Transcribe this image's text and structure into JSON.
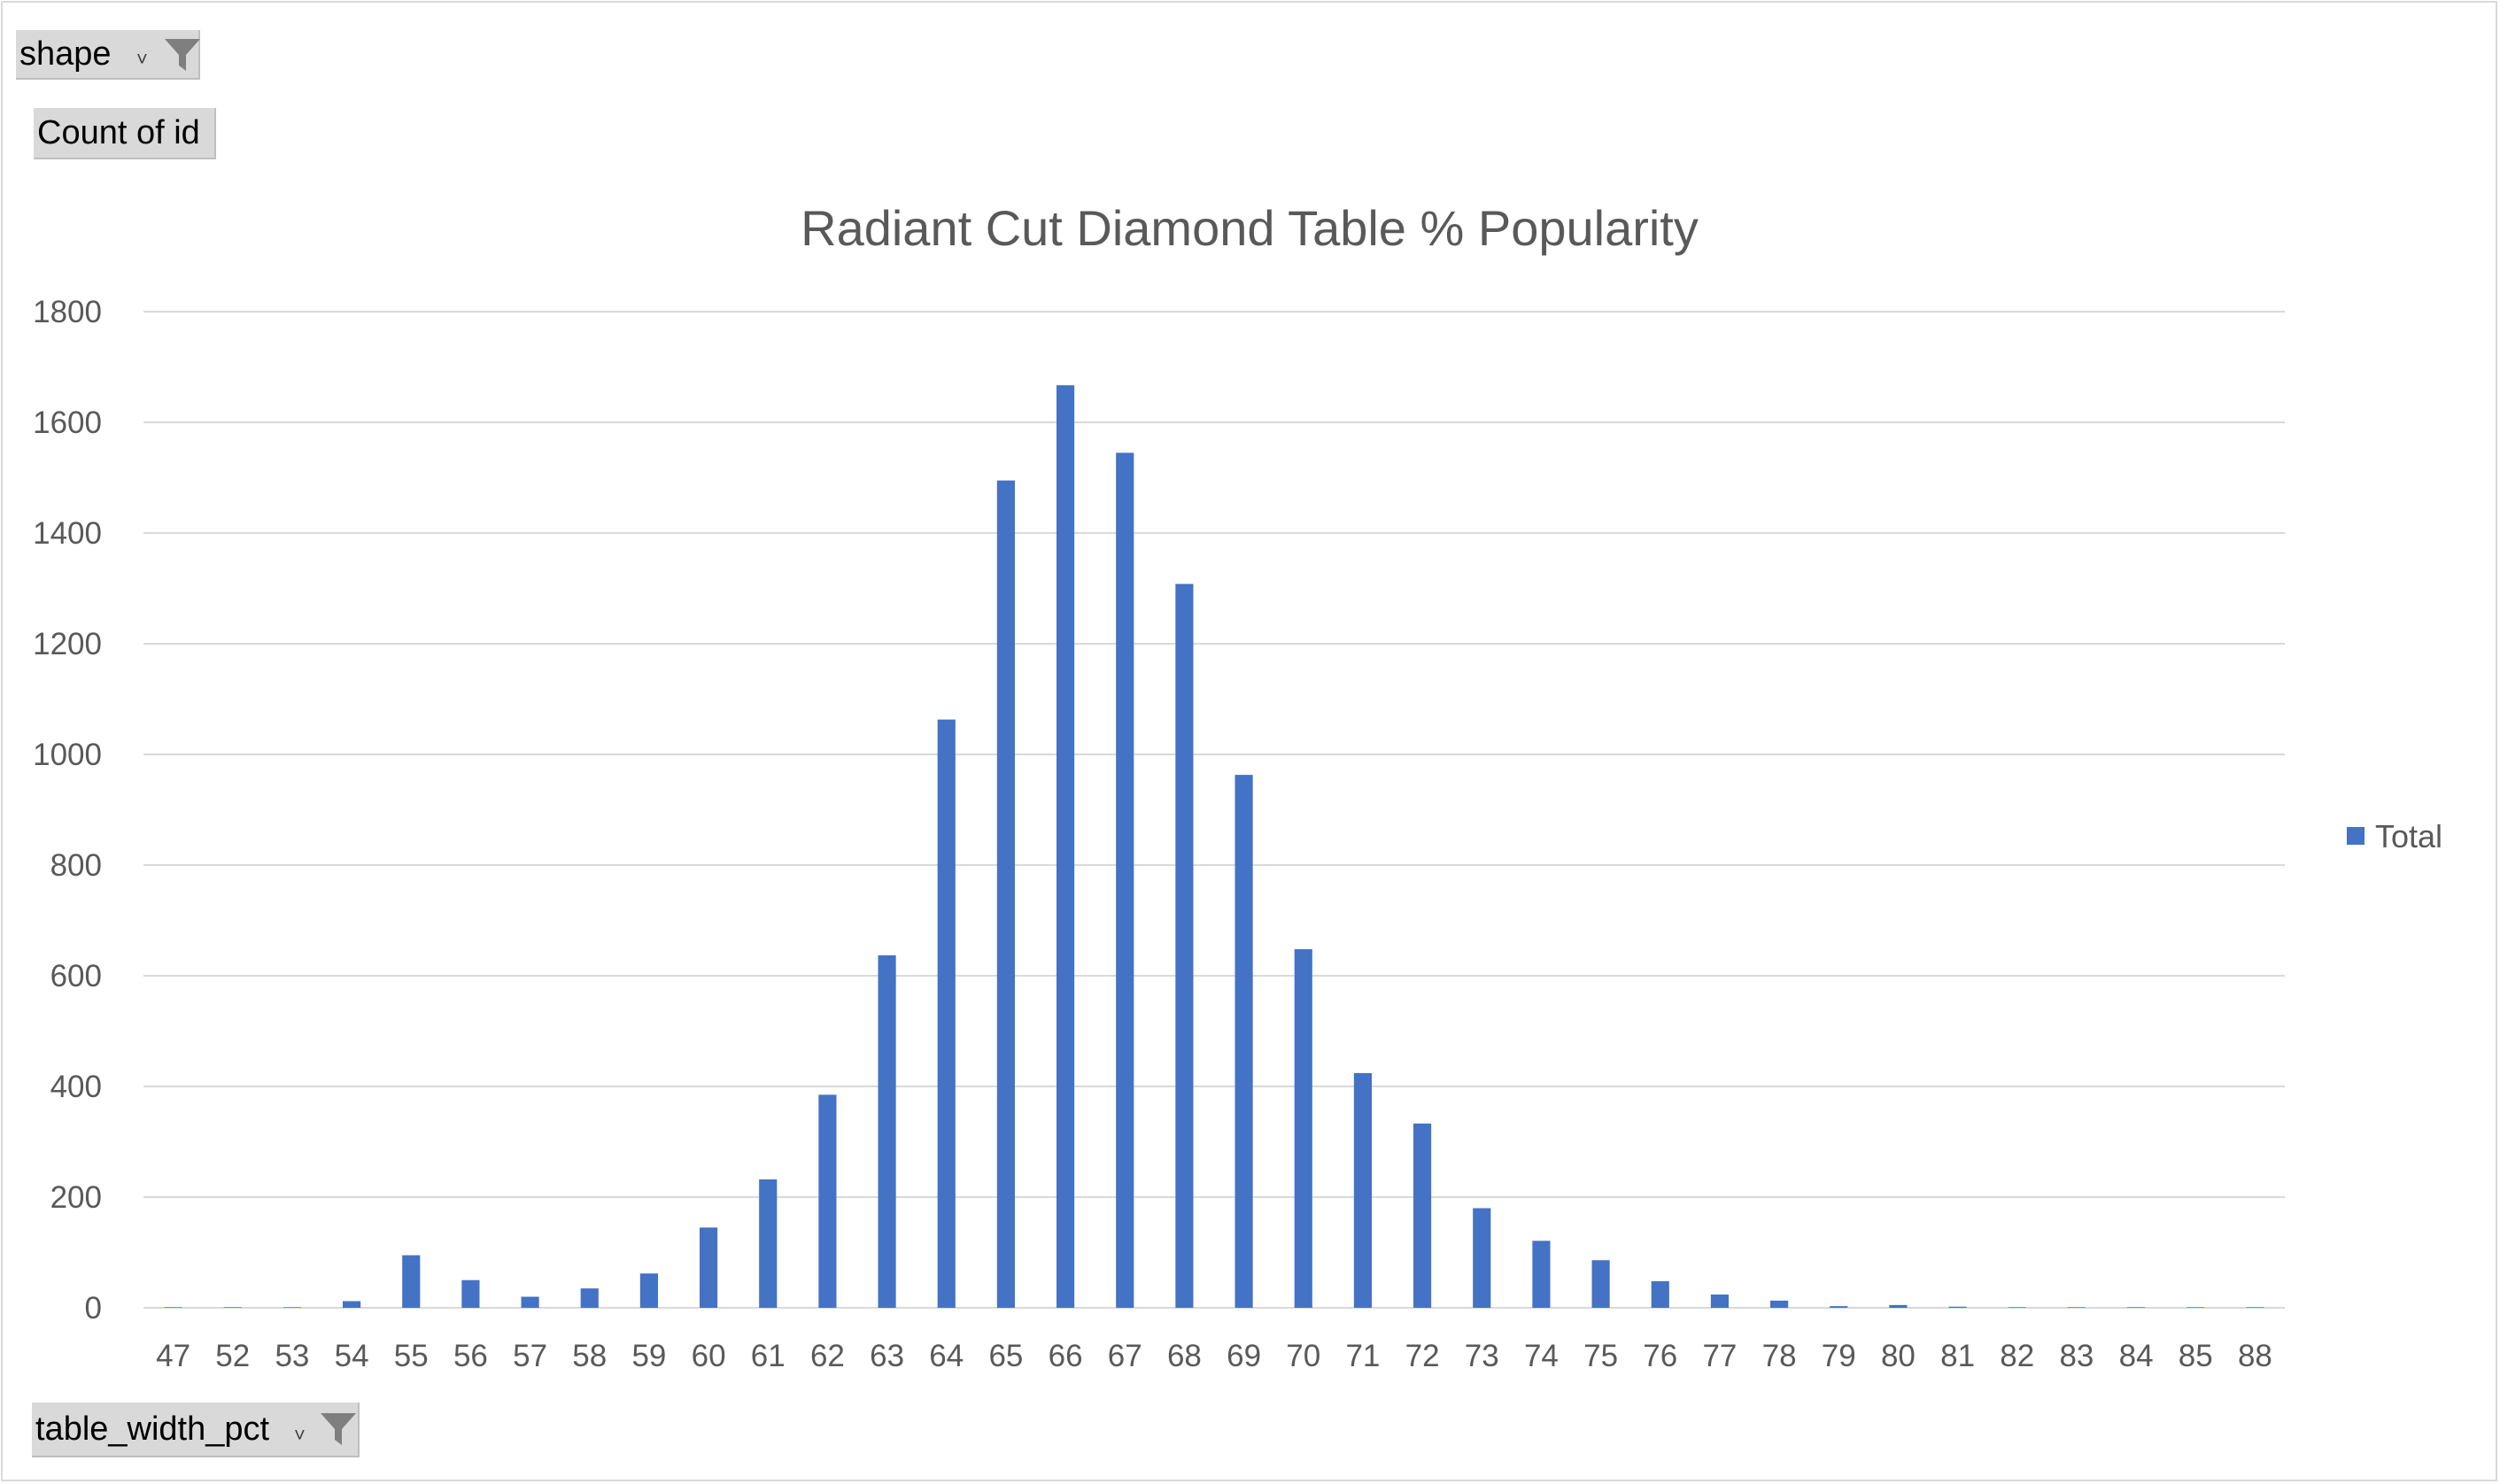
{
  "pivot": {
    "filter_field": {
      "label": "shape"
    },
    "value_field": {
      "label": "Count of id"
    },
    "axis_field": {
      "label": "table_width_pct"
    }
  },
  "colors": {
    "bar": "#4472c4",
    "grid": "#d9d9d9",
    "text": "#595959"
  },
  "chart_data": {
    "type": "bar",
    "title": "Radiant Cut Diamond Table % Popularity",
    "xlabel": "",
    "ylabel": "",
    "ylim": [
      0,
      1800
    ],
    "yticks": [
      "0",
      "200",
      "400",
      "600",
      "800",
      "1000",
      "1200",
      "1400",
      "1600",
      "1800"
    ],
    "grid": true,
    "legend_position": "right",
    "categories": [
      "47",
      "52",
      "53",
      "54",
      "55",
      "56",
      "57",
      "58",
      "59",
      "60",
      "61",
      "62",
      "63",
      "64",
      "65",
      "66",
      "67",
      "68",
      "69",
      "70",
      "71",
      "72",
      "73",
      "74",
      "75",
      "76",
      "77",
      "78",
      "79",
      "80",
      "81",
      "82",
      "83",
      "84",
      "85",
      "88"
    ],
    "series": [
      {
        "name": "Total",
        "values": [
          1,
          1,
          1,
          12,
          95,
          50,
          20,
          35,
          62,
          145,
          232,
          385,
          637,
          1063,
          1495,
          1667,
          1545,
          1308,
          963,
          648,
          424,
          333,
          180,
          121,
          86,
          48,
          24,
          13,
          3,
          5,
          2,
          1,
          1,
          1,
          1,
          1
        ]
      }
    ]
  }
}
